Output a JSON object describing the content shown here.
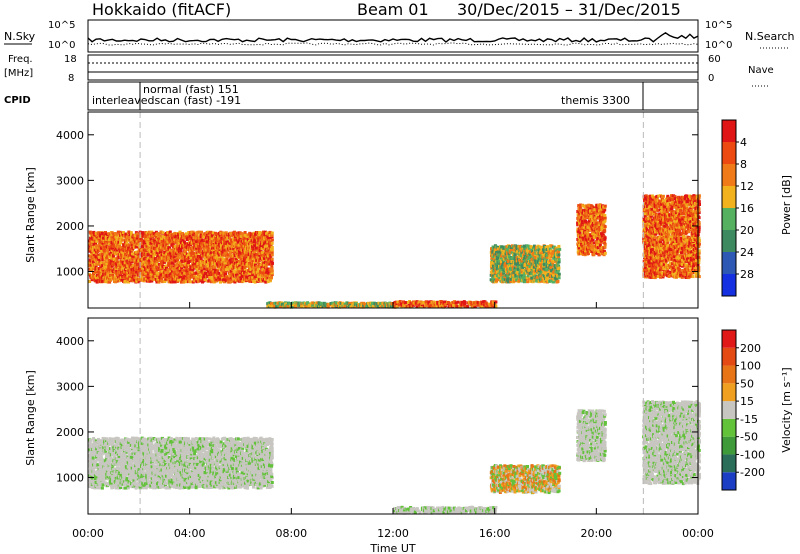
{
  "header": {
    "radar": "Hokkaido (fitACF)",
    "beam": "Beam 01",
    "dates": "30/Dec/2015 – 31/Dec/2015"
  },
  "top_panels": {
    "nsky_label": "N.Sky",
    "nsearch_label": "N.Search",
    "count_scale_top": "10^5",
    "count_scale_bottom": "10^0",
    "freq_label_1": "Freq.",
    "freq_label_2": "[MHz]",
    "freq_ticks": [
      "18",
      "8"
    ],
    "nave_ticks": [
      "60",
      "0"
    ],
    "nave_label": "Nave",
    "cpid_label": "CPID",
    "cpid_entries": [
      {
        "text": "normal (fast) 151"
      },
      {
        "text": "interleavedscan (fast) -191"
      },
      {
        "text": "themis 3300"
      }
    ]
  },
  "chart_data": [
    {
      "type": "heatmap",
      "title": "Power",
      "xlabel": "",
      "ylabel": "Slant Range [km]",
      "y_ticks": [
        "1000",
        "2000",
        "3000",
        "4000"
      ],
      "ylim": [
        200,
        4500
      ],
      "colorbar_label": "Power [dB]",
      "colorbar_ticks": [
        "4",
        "8",
        "12",
        "16",
        "20",
        "24",
        "28"
      ],
      "colorbar_colors": [
        "#1530e0",
        "#2d58b4",
        "#3e8a60",
        "#55b060",
        "#f2b21e",
        "#f07a18",
        "#ec4a10",
        "#e01515"
      ],
      "bands": [
        {
          "x0": 0.0,
          "x1": 7.2,
          "y0": 800,
          "y1": 1900,
          "intensity": "high"
        },
        {
          "x0": 7.0,
          "x1": 12.0,
          "y0": 250,
          "y1": 350,
          "intensity": "medium"
        },
        {
          "x0": 12.0,
          "x1": 16.0,
          "y0": 250,
          "y1": 380,
          "intensity": "high"
        },
        {
          "x0": 15.8,
          "x1": 18.5,
          "y0": 800,
          "y1": 1600,
          "intensity": "medium"
        },
        {
          "x0": 19.2,
          "x1": 20.3,
          "y0": 1400,
          "y1": 2500,
          "intensity": "high"
        },
        {
          "x0": 21.8,
          "x1": 24.0,
          "y0": 900,
          "y1": 2700,
          "intensity": "high"
        }
      ]
    },
    {
      "type": "heatmap",
      "title": "Velocity",
      "xlabel": "Time UT",
      "ylabel": "Slant Range [km]",
      "x_ticks": [
        "00:00",
        "04:00",
        "08:00",
        "12:00",
        "16:00",
        "20:00",
        "00:00"
      ],
      "y_ticks": [
        "1000",
        "2000",
        "3000",
        "4000"
      ],
      "ylim": [
        200,
        4500
      ],
      "colorbar_label": "Velocity [m s⁻¹]",
      "colorbar_ticks": [
        "200",
        "100",
        "50",
        "15",
        "-15",
        "-50",
        "-100",
        "-200"
      ],
      "colorbar_colors": [
        "#1b3ec4",
        "#2a6e5a",
        "#3f9a3a",
        "#62c23a",
        "#c8c6c0",
        "#f0a020",
        "#e87418",
        "#e44a14",
        "#e01818"
      ],
      "bands": [
        {
          "x0": 0.0,
          "x1": 7.2,
          "y0": 800,
          "y1": 1900,
          "class": "ground"
        },
        {
          "x0": 12.0,
          "x1": 16.0,
          "y0": 250,
          "y1": 380,
          "class": "ground"
        },
        {
          "x0": 15.8,
          "x1": 18.5,
          "y0": 700,
          "y1": 1300,
          "class": "mixed"
        },
        {
          "x0": 19.2,
          "x1": 20.3,
          "y0": 1400,
          "y1": 2500,
          "class": "ground"
        },
        {
          "x0": 21.8,
          "x1": 24.0,
          "y0": 900,
          "y1": 2700,
          "class": "ground"
        }
      ]
    }
  ]
}
